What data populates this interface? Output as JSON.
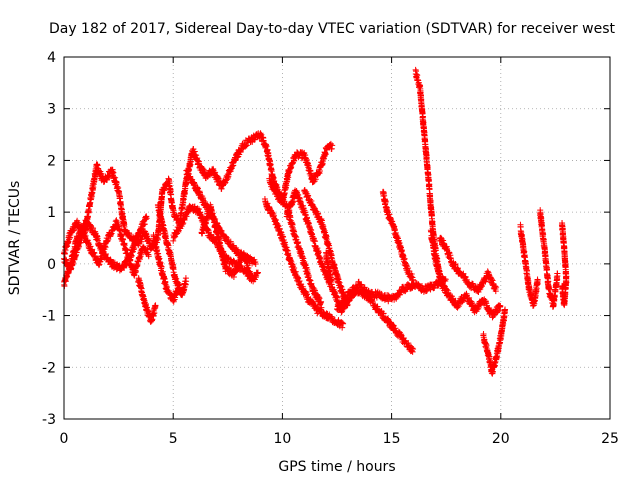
{
  "chart_data": {
    "type": "scatter",
    "title": "Day 182 of 2017, Sidereal Day-to-day VTEC variation (SDTVAR) for receiver west",
    "xlabel": "GPS time / hours",
    "ylabel": "SDTVAR / TECUs",
    "xlim": [
      0,
      25
    ],
    "ylim": [
      -3,
      4
    ],
    "xticks": [
      0,
      5,
      10,
      15,
      20,
      25
    ],
    "yticks": [
      -3,
      -2,
      -1,
      0,
      1,
      2,
      3,
      4
    ],
    "grid": true,
    "marker": "+",
    "series": [
      {
        "name": "SDTVAR",
        "color": "#ff0000",
        "trace": [
          [
            0.0,
            0.2
          ],
          [
            0.3,
            0.6
          ],
          [
            0.6,
            0.8
          ],
          [
            0.9,
            0.5
          ],
          [
            1.2,
            1.2
          ],
          [
            1.5,
            1.9
          ],
          [
            1.8,
            1.6
          ],
          [
            2.2,
            1.8
          ],
          [
            2.5,
            1.4
          ],
          [
            2.8,
            0.6
          ],
          [
            3.1,
            0.5
          ],
          [
            3.4,
            0.4
          ],
          [
            3.7,
            0.6
          ],
          [
            4.0,
            0.3
          ],
          [
            4.3,
            0.5
          ],
          [
            4.5,
            1.4
          ],
          [
            4.8,
            1.6
          ],
          [
            5.0,
            1.0
          ],
          [
            5.3,
            0.8
          ],
          [
            5.6,
            1.6
          ],
          [
            5.9,
            2.2
          ],
          [
            6.2,
            1.9
          ],
          [
            6.5,
            1.7
          ],
          [
            6.8,
            1.8
          ],
          [
            7.2,
            1.5
          ],
          [
            7.5,
            1.7
          ],
          [
            7.8,
            2.0
          ],
          [
            8.2,
            2.3
          ],
          [
            8.6,
            2.4
          ],
          [
            9.0,
            2.5
          ],
          [
            9.3,
            2.2
          ],
          [
            9.6,
            1.6
          ],
          [
            10.0,
            1.2
          ],
          [
            10.3,
            1.8
          ],
          [
            10.6,
            2.1
          ],
          [
            11.0,
            2.1
          ],
          [
            11.4,
            1.6
          ],
          [
            11.7,
            1.8
          ],
          [
            12.0,
            2.2
          ],
          [
            12.3,
            2.3
          ]
        ],
        "traces": [
          [
            [
              0.0,
              0.1
            ],
            [
              0.3,
              -0.1
            ],
            [
              0.6,
              0.3
            ],
            [
              0.9,
              0.6
            ],
            [
              1.2,
              0.3
            ],
            [
              1.6,
              0.0
            ],
            [
              2.0,
              0.5
            ],
            [
              2.4,
              0.8
            ],
            [
              2.8,
              0.3
            ],
            [
              3.2,
              -0.2
            ],
            [
              3.6,
              0.3
            ],
            [
              3.9,
              0.2
            ]
          ],
          [
            [
              0.0,
              -0.4
            ],
            [
              0.3,
              0.0
            ],
            [
              0.6,
              0.5
            ],
            [
              1.0,
              0.8
            ],
            [
              1.4,
              0.6
            ],
            [
              1.8,
              0.2
            ],
            [
              2.2,
              0.0
            ],
            [
              2.6,
              -0.1
            ],
            [
              3.0,
              0.1
            ],
            [
              3.4,
              0.6
            ],
            [
              3.8,
              0.9
            ]
          ],
          [
            [
              3.4,
              -0.3
            ],
            [
              3.6,
              -0.6
            ],
            [
              3.8,
              -0.9
            ],
            [
              4.0,
              -1.1
            ],
            [
              4.2,
              -0.8
            ]
          ],
          [
            [
              4.3,
              1.1
            ],
            [
              4.6,
              0.6
            ],
            [
              4.9,
              0.1
            ],
            [
              5.1,
              -0.3
            ],
            [
              5.4,
              -0.6
            ],
            [
              5.6,
              -0.3
            ]
          ],
          [
            [
              4.1,
              0.5
            ],
            [
              4.4,
              0.0
            ],
            [
              4.7,
              -0.5
            ],
            [
              5.0,
              -0.7
            ],
            [
              5.3,
              -0.4
            ]
          ],
          [
            [
              5.0,
              0.5
            ],
            [
              5.4,
              0.8
            ],
            [
              5.8,
              1.1
            ],
            [
              6.2,
              1.0
            ],
            [
              6.6,
              0.6
            ],
            [
              7.0,
              0.4
            ],
            [
              7.4,
              0.1
            ],
            [
              7.8,
              0.0
            ],
            [
              8.2,
              -0.1
            ],
            [
              8.6,
              -0.3
            ],
            [
              8.9,
              -0.2
            ]
          ],
          [
            [
              5.6,
              1.8
            ],
            [
              6.0,
              1.5
            ],
            [
              6.4,
              1.2
            ],
            [
              6.8,
              0.9
            ],
            [
              7.2,
              0.6
            ],
            [
              7.6,
              0.4
            ],
            [
              8.0,
              0.2
            ],
            [
              8.4,
              0.1
            ],
            [
              8.8,
              0.0
            ]
          ],
          [
            [
              6.3,
              0.6
            ],
            [
              6.7,
              1.1
            ],
            [
              7.0,
              0.6
            ],
            [
              7.4,
              -0.1
            ],
            [
              7.8,
              -0.2
            ],
            [
              8.2,
              0.2
            ],
            [
              8.6,
              -0.3
            ]
          ],
          [
            [
              9.2,
              1.2
            ],
            [
              9.6,
              0.9
            ],
            [
              10.0,
              0.5
            ],
            [
              10.4,
              0.0
            ],
            [
              10.8,
              -0.4
            ],
            [
              11.2,
              -0.7
            ],
            [
              11.6,
              -0.9
            ],
            [
              12.0,
              -1.0
            ],
            [
              12.4,
              -1.1
            ],
            [
              12.8,
              -1.2
            ]
          ],
          [
            [
              9.4,
              1.6
            ],
            [
              9.8,
              1.3
            ],
            [
              10.2,
              1.1
            ],
            [
              10.6,
              0.5
            ],
            [
              11.0,
              0.0
            ],
            [
              11.4,
              -0.5
            ],
            [
              11.8,
              -0.8
            ]
          ],
          [
            [
              10.2,
              0.9
            ],
            [
              10.6,
              1.4
            ],
            [
              11.0,
              1.0
            ],
            [
              11.4,
              0.5
            ],
            [
              11.8,
              0.0
            ],
            [
              12.2,
              -0.4
            ]
          ],
          [
            [
              11.0,
              1.4
            ],
            [
              11.4,
              1.1
            ],
            [
              11.8,
              0.8
            ],
            [
              12.2,
              0.2
            ],
            [
              12.6,
              -0.4
            ],
            [
              13.0,
              -0.8
            ]
          ],
          [
            [
              12.0,
              0.2
            ],
            [
              12.3,
              -0.5
            ],
            [
              12.7,
              -0.9
            ],
            [
              13.0,
              -0.7
            ],
            [
              13.4,
              -0.5
            ],
            [
              13.8,
              -0.6
            ],
            [
              14.2,
              -0.8
            ],
            [
              14.6,
              -1.0
            ],
            [
              15.0,
              -1.2
            ],
            [
              15.4,
              -1.4
            ],
            [
              15.8,
              -1.6
            ],
            [
              16.0,
              -1.7
            ]
          ],
          [
            [
              12.5,
              -0.9
            ],
            [
              13.0,
              -0.6
            ],
            [
              13.5,
              -0.4
            ],
            [
              14.0,
              -0.6
            ],
            [
              14.5,
              -0.6
            ],
            [
              15.0,
              -0.7
            ],
            [
              15.5,
              -0.5
            ],
            [
              16.0,
              -0.4
            ],
            [
              16.5,
              -0.5
            ],
            [
              17.0,
              -0.4
            ],
            [
              17.5,
              -0.3
            ]
          ],
          [
            [
              14.6,
              1.4
            ],
            [
              14.8,
              1.0
            ],
            [
              15.1,
              0.7
            ],
            [
              15.4,
              0.3
            ],
            [
              15.7,
              -0.1
            ],
            [
              16.0,
              -0.3
            ]
          ],
          [
            [
              16.1,
              3.7
            ],
            [
              16.3,
              3.4
            ],
            [
              16.5,
              2.5
            ],
            [
              16.7,
              1.6
            ],
            [
              16.9,
              0.6
            ],
            [
              17.1,
              0.0
            ],
            [
              17.3,
              -0.4
            ]
          ],
          [
            [
              16.8,
              0.6
            ],
            [
              17.0,
              0.1
            ],
            [
              17.3,
              -0.4
            ],
            [
              17.6,
              -0.6
            ],
            [
              18.0,
              -0.8
            ],
            [
              18.4,
              -0.6
            ],
            [
              18.8,
              -0.9
            ],
            [
              19.2,
              -0.7
            ],
            [
              19.6,
              -1.0
            ],
            [
              20.0,
              -0.8
            ]
          ],
          [
            [
              17.2,
              0.5
            ],
            [
              17.5,
              0.3
            ],
            [
              17.8,
              0.0
            ],
            [
              18.2,
              -0.2
            ],
            [
              18.6,
              -0.4
            ],
            [
              19.0,
              -0.5
            ],
            [
              19.4,
              -0.2
            ],
            [
              19.8,
              -0.5
            ]
          ],
          [
            [
              19.2,
              -1.4
            ],
            [
              19.4,
              -1.7
            ],
            [
              19.6,
              -2.1
            ],
            [
              19.8,
              -1.8
            ],
            [
              20.0,
              -1.4
            ],
            [
              20.2,
              -0.9
            ]
          ],
          [
            [
              20.9,
              0.7
            ],
            [
              21.1,
              0.1
            ],
            [
              21.3,
              -0.5
            ],
            [
              21.5,
              -0.8
            ],
            [
              21.7,
              -0.3
            ]
          ],
          [
            [
              21.8,
              1.0
            ],
            [
              22.0,
              0.3
            ],
            [
              22.2,
              -0.5
            ],
            [
              22.4,
              -0.8
            ],
            [
              22.6,
              -0.2
            ]
          ],
          [
            [
              22.8,
              0.8
            ],
            [
              22.9,
              0.3
            ],
            [
              23.0,
              -0.3
            ],
            [
              22.9,
              -0.8
            ],
            [
              22.8,
              -0.4
            ]
          ]
        ]
      }
    ]
  }
}
